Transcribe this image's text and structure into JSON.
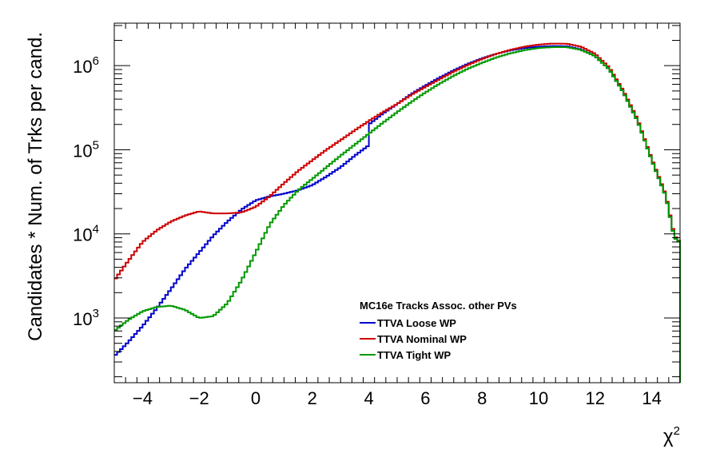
{
  "chart_data": {
    "type": "line",
    "title": "",
    "xlabel": "χ²",
    "ylabel": "Candidates * Num. of Trks per cand.",
    "xlim": [
      -5,
      15
    ],
    "ylim": [
      170,
      3200000
    ],
    "yscale": "log",
    "grid": false,
    "legend_placement": "lower-center",
    "legend_title": "MC16e Tracks Assoc. other PVs",
    "x_ticks": [
      {
        "value": -4,
        "label": "−4"
      },
      {
        "value": -2,
        "label": "−2"
      },
      {
        "value": 0,
        "label": "0"
      },
      {
        "value": 2,
        "label": "2"
      },
      {
        "value": 4,
        "label": "4"
      },
      {
        "value": 6,
        "label": "6"
      },
      {
        "value": 8,
        "label": "8"
      },
      {
        "value": 10,
        "label": "10"
      },
      {
        "value": 12,
        "label": "12"
      },
      {
        "value": 14,
        "label": "14"
      }
    ],
    "y_ticks": [
      {
        "value": 1000,
        "mantissa": "10",
        "exp": "3"
      },
      {
        "value": 10000,
        "mantissa": "10",
        "exp": "4"
      },
      {
        "value": 100000,
        "mantissa": "10",
        "exp": "5"
      },
      {
        "value": 1000000,
        "mantissa": "10",
        "exp": "6"
      }
    ],
    "series": [
      {
        "name": "TTVA Loose WP",
        "color": "#0000cc",
        "x": [
          -5,
          -4.5,
          -4,
          -3.5,
          -3,
          -2.5,
          -2,
          -1.5,
          -1,
          -0.5,
          0,
          0.5,
          1,
          1.5,
          2,
          2.5,
          3,
          3.5,
          3.95,
          4.0,
          4.5,
          5,
          5.5,
          6,
          6.5,
          7,
          7.5,
          8,
          8.5,
          9,
          9.5,
          10,
          10.5,
          11,
          11.5,
          12,
          12.5,
          13,
          13.5,
          14,
          14.5,
          14.8,
          15
        ],
        "y": [
          350,
          520,
          800,
          1300,
          2200,
          3800,
          6000,
          9500,
          14000,
          19500,
          25000,
          28000,
          30000,
          33000,
          38000,
          48000,
          62000,
          85000,
          110000,
          200000,
          270000,
          350000,
          460000,
          580000,
          720000,
          880000,
          1050000,
          1220000,
          1380000,
          1520000,
          1620000,
          1680000,
          1710000,
          1700000,
          1560000,
          1300000,
          900000,
          480000,
          220000,
          75000,
          28000,
          9000,
          8000
        ]
      },
      {
        "name": "TTVA Nominal WP",
        "color": "#cc0000",
        "x": [
          -5,
          -4.5,
          -4,
          -3.5,
          -3,
          -2.5,
          -2,
          -1.5,
          -1,
          -0.5,
          0,
          0.5,
          1,
          1.5,
          2,
          2.5,
          3,
          3.5,
          4,
          4.5,
          5,
          5.5,
          6,
          6.5,
          7,
          7.5,
          8,
          8.5,
          9,
          9.5,
          10,
          10.5,
          11,
          11.5,
          12,
          12.5,
          13,
          13.5,
          14,
          14.5,
          14.8,
          15
        ],
        "y": [
          2800,
          4800,
          8000,
          11000,
          14000,
          16500,
          18500,
          17500,
          17500,
          18000,
          21000,
          28000,
          40000,
          56000,
          75000,
          100000,
          130000,
          170000,
          220000,
          280000,
          350000,
          450000,
          560000,
          690000,
          850000,
          1020000,
          1200000,
          1380000,
          1540000,
          1680000,
          1780000,
          1830000,
          1820000,
          1680000,
          1380000,
          950000,
          500000,
          230000,
          78000,
          29000,
          9500,
          8000
        ]
      },
      {
        "name": "TTVA Tight WP",
        "color": "#009900",
        "x": [
          -5,
          -4.5,
          -4,
          -3.5,
          -3,
          -2.5,
          -2,
          -1.5,
          -1,
          -0.5,
          0,
          0.5,
          1,
          1.5,
          2,
          2.5,
          3,
          3.5,
          4,
          4.5,
          5,
          5.5,
          6,
          6.5,
          7,
          7.5,
          8,
          8.5,
          9,
          9.5,
          10,
          10.5,
          11,
          11.5,
          12,
          12.5,
          13,
          13.5,
          14,
          14.5,
          14.8,
          15
        ],
        "y": [
          700,
          950,
          1200,
          1350,
          1400,
          1250,
          1000,
          1050,
          1500,
          2800,
          6000,
          13000,
          22000,
          33000,
          45000,
          62000,
          85000,
          115000,
          155000,
          210000,
          280000,
          370000,
          480000,
          610000,
          760000,
          920000,
          1080000,
          1250000,
          1400000,
          1530000,
          1620000,
          1660000,
          1660000,
          1540000,
          1300000,
          900000,
          480000,
          220000,
          75000,
          28000,
          9000,
          8000
        ]
      }
    ]
  }
}
